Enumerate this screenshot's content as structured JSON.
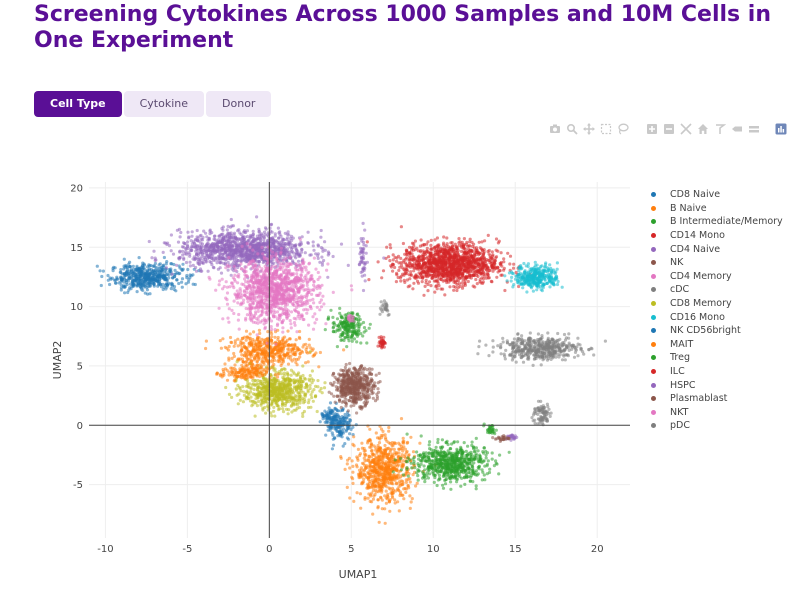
{
  "title": "Screening Cytokines Across 1000 Samples and 10M Cells in One Experiment",
  "tabs": [
    {
      "label": "Cell Type",
      "active": true
    },
    {
      "label": "Cytokine",
      "active": false
    },
    {
      "label": "Donor",
      "active": false
    }
  ],
  "modebar_icons": [
    "camera-icon",
    "zoom-icon",
    "pan-icon",
    "box-select-icon",
    "lasso-icon",
    "zoom-in-icon",
    "zoom-out-icon",
    "autoscale-icon",
    "home-icon",
    "spike-lines-icon",
    "hover-closest-icon",
    "hover-compare-icon",
    "plotly-logo-icon"
  ],
  "colors": {
    "accent": "#5a0f96",
    "tab_inactive": "#efe8f6"
  },
  "chart_data": {
    "type": "scatter",
    "xlabel": "UMAP1",
    "ylabel": "UMAP2",
    "xlim": [
      -11,
      22
    ],
    "ylim": [
      -9.5,
      20.5
    ],
    "xticks": [
      -10,
      -5,
      0,
      5,
      10,
      15,
      20
    ],
    "yticks": [
      -5,
      0,
      5,
      10,
      15,
      20
    ],
    "grid": true,
    "legend_position": "right",
    "series": [
      {
        "name": "CD8 Naive",
        "color": "#1f77b4",
        "clusters": [
          {
            "cx": -7.5,
            "cy": 12.5,
            "sx": 2.0,
            "sy": 1.0,
            "n": 500
          },
          {
            "cx": 4.3,
            "cy": 0.0,
            "sx": 0.7,
            "sy": 1.2,
            "n": 150
          }
        ]
      },
      {
        "name": "B Naive",
        "color": "#ff7f0e",
        "clusters": [
          {
            "cx": 7.0,
            "cy": -3.8,
            "sx": 1.6,
            "sy": 2.4,
            "n": 700
          },
          {
            "cx": 0.0,
            "cy": 6.3,
            "sx": 2.3,
            "sy": 1.2,
            "n": 450
          }
        ]
      },
      {
        "name": "B Intermediate/Memory",
        "color": "#2ca02c",
        "clusters": [
          {
            "cx": 11.0,
            "cy": -3.2,
            "sx": 2.0,
            "sy": 1.4,
            "n": 650
          },
          {
            "cx": 4.8,
            "cy": 8.3,
            "sx": 0.9,
            "sy": 1.1,
            "n": 200
          }
        ]
      },
      {
        "name": "CD14 Mono",
        "color": "#d62728",
        "clusters": [
          {
            "cx": 11.0,
            "cy": 13.6,
            "sx": 2.7,
            "sy": 1.6,
            "n": 1300
          }
        ]
      },
      {
        "name": "CD4 Naive",
        "color": "#9467bd",
        "clusters": [
          {
            "cx": -1.5,
            "cy": 14.8,
            "sx": 3.6,
            "sy": 1.4,
            "n": 1200
          },
          {
            "cx": 5.7,
            "cy": 14.0,
            "sx": 0.2,
            "sy": 2.0,
            "n": 50
          }
        ]
      },
      {
        "name": "NK",
        "color": "#8c564b",
        "clusters": [
          {
            "cx": 5.2,
            "cy": 3.3,
            "sx": 1.1,
            "sy": 1.4,
            "n": 500
          }
        ]
      },
      {
        "name": "CD4 Memory",
        "color": "#e377c2",
        "clusters": [
          {
            "cx": 0.3,
            "cy": 11.3,
            "sx": 2.4,
            "sy": 2.4,
            "n": 1100
          }
        ]
      },
      {
        "name": "cDC",
        "color": "#7f7f7f",
        "clusters": [
          {
            "cx": 16.5,
            "cy": 6.5,
            "sx": 2.2,
            "sy": 0.9,
            "n": 450
          },
          {
            "cx": 16.6,
            "cy": 0.9,
            "sx": 0.5,
            "sy": 0.9,
            "n": 80
          }
        ]
      },
      {
        "name": "CD8 Memory",
        "color": "#bcbd22",
        "clusters": [
          {
            "cx": 0.5,
            "cy": 2.9,
            "sx": 1.9,
            "sy": 1.4,
            "n": 650
          }
        ]
      },
      {
        "name": "CD16 Mono",
        "color": "#17becf",
        "clusters": [
          {
            "cx": 16.3,
            "cy": 12.5,
            "sx": 1.2,
            "sy": 0.9,
            "n": 350
          }
        ]
      },
      {
        "name": "NK CD56bright",
        "color": "#1f77b4",
        "clusters": [
          {
            "cx": 3.7,
            "cy": 0.6,
            "sx": 0.5,
            "sy": 0.6,
            "n": 60
          }
        ]
      },
      {
        "name": "MAIT",
        "color": "#ff7f0e",
        "clusters": [
          {
            "cx": -1.5,
            "cy": 4.4,
            "sx": 1.3,
            "sy": 0.6,
            "n": 150
          }
        ]
      },
      {
        "name": "Treg",
        "color": "#2ca02c",
        "clusters": [
          {
            "cx": 13.5,
            "cy": -0.4,
            "sx": 0.3,
            "sy": 0.4,
            "n": 30
          }
        ]
      },
      {
        "name": "ILC",
        "color": "#d62728",
        "clusters": [
          {
            "cx": 6.9,
            "cy": 7.0,
            "sx": 0.15,
            "sy": 0.4,
            "n": 40
          }
        ]
      },
      {
        "name": "HSPC",
        "color": "#9467bd",
        "clusters": [
          {
            "cx": 14.8,
            "cy": -1.0,
            "sx": 0.3,
            "sy": 0.2,
            "n": 25
          }
        ]
      },
      {
        "name": "Plasmablast",
        "color": "#8c564b",
        "clusters": [
          {
            "cx": 14.2,
            "cy": -1.1,
            "sx": 0.4,
            "sy": 0.2,
            "n": 25
          }
        ]
      },
      {
        "name": "NKT",
        "color": "#e377c2",
        "clusters": [
          {
            "cx": 5.0,
            "cy": 9.0,
            "sx": 0.2,
            "sy": 0.4,
            "n": 15
          }
        ]
      },
      {
        "name": "pDC",
        "color": "#7f7f7f",
        "clusters": [
          {
            "cx": 7.0,
            "cy": 10.0,
            "sx": 0.4,
            "sy": 0.7,
            "n": 25
          }
        ]
      }
    ]
  }
}
